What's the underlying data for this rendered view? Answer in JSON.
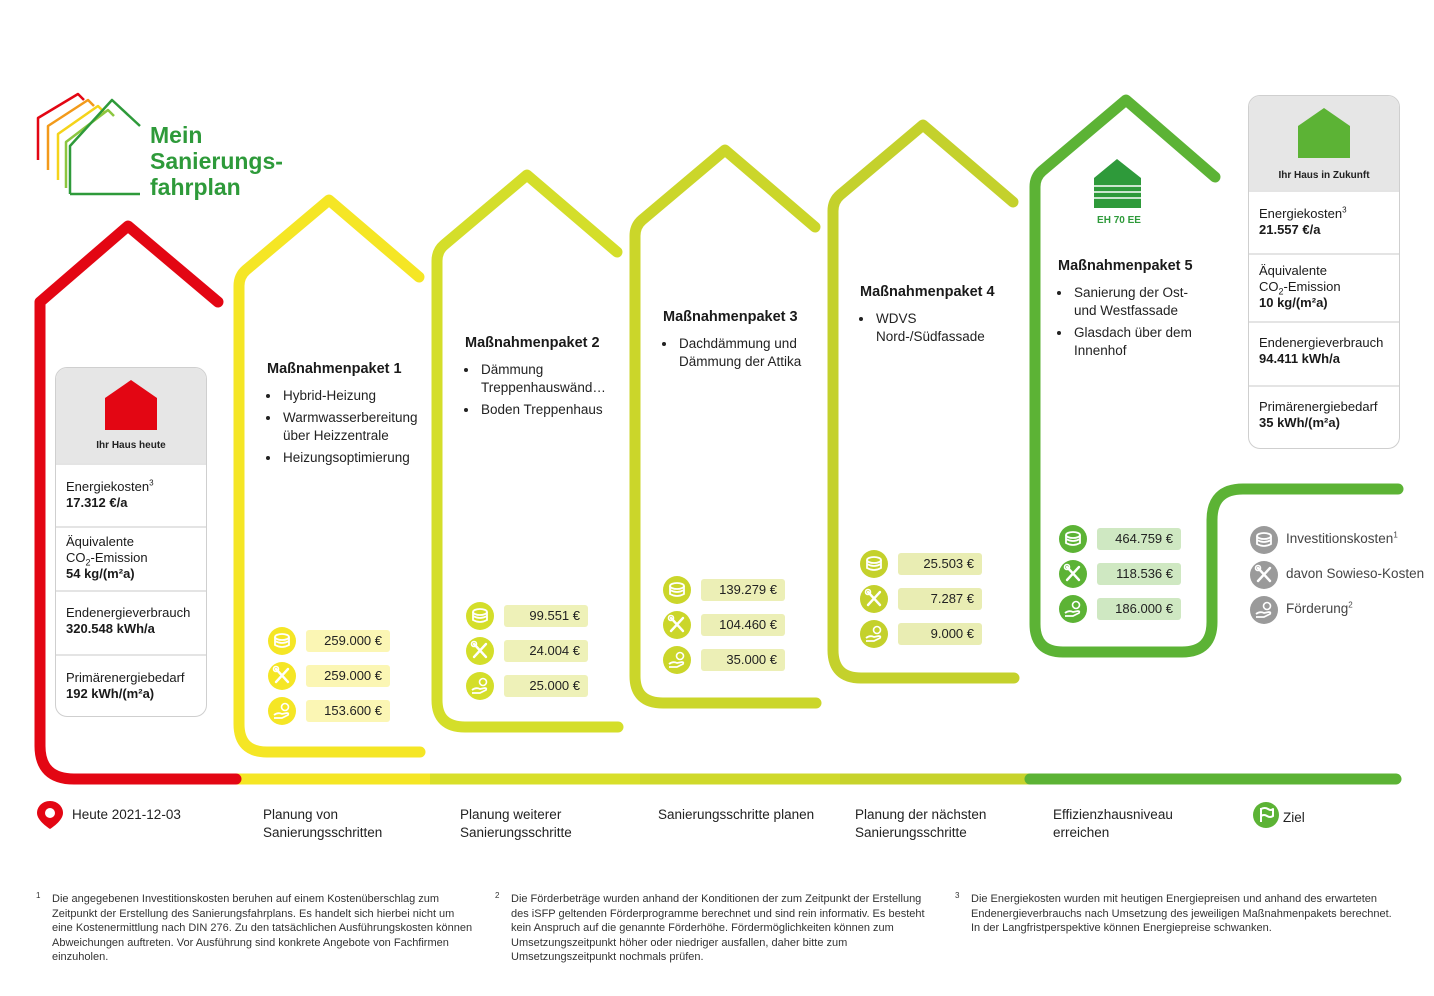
{
  "logo": {
    "line1": "Mein",
    "line2": "Sanierungs-",
    "line3": "fahrplan"
  },
  "colors": {
    "red": "#e30613",
    "yellow": "#f5e625",
    "lime1": "#d4de2a",
    "lime2": "#cbd62a",
    "lime3": "#c4d12c",
    "green_lime": "#9cc83a",
    "green": "#5cb335",
    "brand_green": "#2e9a3a"
  },
  "status_today": {
    "head": "Ihr Haus heute",
    "energy_label": "Energiekosten",
    "energy_sup": "3",
    "energy_value": "17.312 €/a",
    "co2_label1": "Äquivalente",
    "co2_label2a": "CO",
    "co2_sub": "2",
    "co2_label2b": "-Emission",
    "co2_value": "54 kg/(m²a)",
    "end_label": "Endenergieverbrauch",
    "end_value": "320.548 kWh/a",
    "prim_label": "Primärenergiebedarf",
    "prim_value": "192 kWh/(m²a)"
  },
  "status_future": {
    "head": "Ihr Haus in Zukunft",
    "energy_label": "Energiekosten",
    "energy_sup": "3",
    "energy_value": "21.557 €/a",
    "co2_label1": "Äquivalente",
    "co2_label2a": "CO",
    "co2_sub": "2",
    "co2_label2b": "-Emission",
    "co2_value": "10 kg/(m²a)",
    "end_label": "Endenergieverbrauch",
    "end_value": "94.411 kWh/a",
    "prim_label": "Primärenergiebedarf",
    "prim_value": "35 kWh/(m²a)"
  },
  "packages": [
    {
      "title": "Maßnahmenpaket 1",
      "items": [
        "Hybrid-Heizung",
        "Warmwasserbereitung über Heizzentrale",
        "Heizungsoptimierung"
      ],
      "invest": "259.000 €",
      "sowieso": "259.000 €",
      "foerderung": "153.600 €"
    },
    {
      "title": "Maßnahmenpaket 2",
      "items": [
        "Dämmung Treppenhauswänd…",
        "Boden Treppenhaus"
      ],
      "invest": "99.551 €",
      "sowieso": "24.004 €",
      "foerderung": "25.000 €"
    },
    {
      "title": "Maßnahmenpaket 3",
      "items": [
        "Dachdämmung und Dämmung der Attika"
      ],
      "invest": "139.279 €",
      "sowieso": "104.460 €",
      "foerderung": "35.000 €"
    },
    {
      "title": "Maßnahmenpaket 4",
      "items": [
        "WDVS Nord-/Südfassade"
      ],
      "invest": "25.503 €",
      "sowieso": "7.287 €",
      "foerderung": "9.000 €"
    },
    {
      "title": "Maßnahmenpaket 5",
      "items": [
        "Sanierung der Ost- und Westfassade",
        "Glasdach über dem Innenhof"
      ],
      "invest": "464.759 €",
      "sowieso": "118.536 €",
      "foerderung": "186.000 €",
      "badge": "EH 70 EE"
    }
  ],
  "legend": {
    "invest": "Investitionskosten",
    "invest_sup": "1",
    "sowieso": "davon Sowieso-Kosten",
    "foerderung": "Förderung",
    "foerderung_sup": "2"
  },
  "milestones": {
    "today": "Heute 2021-12-03",
    "m1": "Planung von Sanierungsschritten",
    "m2": "Planung weiterer Sanierungsschritte",
    "m3": "Sanierungsschritte planen",
    "m4": "Planung der nächsten Sanierungsschritte",
    "m5": "Effizienzhausniveau erreichen",
    "goal": "Ziel"
  },
  "footnotes": [
    {
      "num": "1",
      "text": "Die angegebenen Investitionskosten beruhen auf einem Kostenüberschlag zum Zeitpunkt der Erstellung des Sanierungsfahrplans. Es handelt sich hierbei nicht um eine Kostenermittlung nach DIN 276. Zu den tatsächlichen Ausführungskosten können Abweichungen auftreten. Vor Ausführung sind konkrete Angebote von Fachfirmen einzuholen."
    },
    {
      "num": "2",
      "text": "Die Förderbeträge wurden anhand der Konditionen der zum Zeitpunkt der Erstellung des iSFP geltenden Förderprogramme berechnet und sind rein informativ. Es besteht kein Anspruch auf die genannte Förderhöhe. Fördermöglichkeiten können zum Umsetzungszeitpunkt höher oder niedriger ausfallen, daher bitte zum Umsetzungszeitpunkt nochmals prüfen."
    },
    {
      "num": "3",
      "text": "Die Energiekosten wurden mit heutigen Energiepreisen und anhand des erwarteten Endenergieverbrauchs nach Umsetzung des jeweiligen Maßnahmenpakets berechnet. In der Langfristperspektive können Energiepreise schwanken."
    }
  ]
}
